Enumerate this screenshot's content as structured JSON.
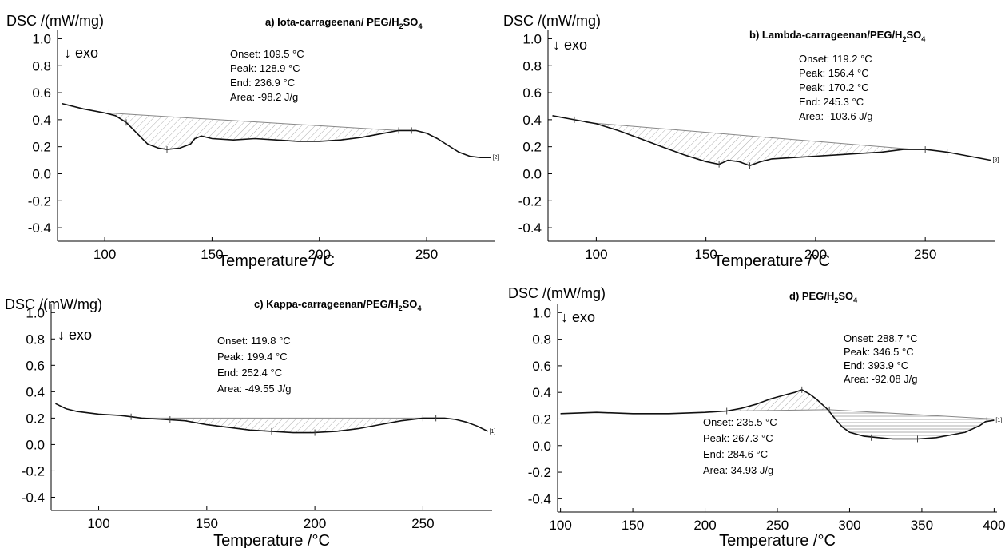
{
  "chart_data": [
    {
      "type": "line",
      "title_prefix": "a) Iota-carrageenan/ PEG/H",
      "title_sub": "2",
      "title_mid": "SO",
      "title_sub2": "4",
      "ylabel": "DSC /(mW/mg)",
      "xlabel": "Temperature /°C",
      "exo_label": "↓ exo",
      "curve_tag": "[2]",
      "xlim": [
        78,
        282
      ],
      "ylim": [
        -0.5,
        1.05
      ],
      "x_ticks": [
        100,
        150,
        200,
        250
      ],
      "y_ticks": [
        1.0,
        0.8,
        0.6,
        0.4,
        0.2,
        0.0,
        -0.2,
        -0.4
      ],
      "y_tick_labels": [
        "1.0",
        "0.8",
        "0.6",
        "0.4",
        "0.2",
        "0.0",
        "-0.2",
        "-0.4"
      ],
      "annotations": [
        "Onset: 109.5 °C",
        "Peak: 128.9 °C",
        "End: 236.9 °C",
        "Area: -98.2 J/g"
      ],
      "series": [
        {
          "x": [
            80,
            90,
            100,
            105,
            110,
            115,
            120,
            125,
            129,
            135,
            140,
            142,
            145,
            150,
            160,
            170,
            180,
            190,
            200,
            210,
            220,
            230,
            237,
            245,
            250,
            255,
            260,
            265,
            270,
            275,
            280
          ],
          "y": [
            0.52,
            0.48,
            0.45,
            0.43,
            0.38,
            0.3,
            0.22,
            0.19,
            0.18,
            0.19,
            0.22,
            0.26,
            0.28,
            0.26,
            0.25,
            0.26,
            0.25,
            0.24,
            0.24,
            0.25,
            0.27,
            0.3,
            0.32,
            0.32,
            0.3,
            0.26,
            0.21,
            0.16,
            0.13,
            0.12,
            0.12
          ]
        }
      ],
      "baseline": {
        "x": [
          101,
          237
        ],
        "y": [
          0.45,
          0.32
        ]
      },
      "markers": [
        {
          "x": 102,
          "y": 0.45
        },
        {
          "x": 110,
          "y": 0.38
        },
        {
          "x": 129,
          "y": 0.18
        },
        {
          "x": 237,
          "y": 0.32
        },
        {
          "x": 243,
          "y": 0.32
        }
      ]
    },
    {
      "type": "line",
      "title_prefix": "b) Lambda-carrageenan/PEG/H",
      "title_sub": "2",
      "title_mid": "SO",
      "title_sub2": "4",
      "ylabel": "DSC /(mW/mg)",
      "xlabel": "Temperature /°C",
      "exo_label": "↓ exo",
      "curve_tag": "[8]",
      "xlim": [
        78,
        282
      ],
      "ylim": [
        -0.5,
        1.05
      ],
      "x_ticks": [
        100,
        150,
        200,
        250
      ],
      "y_ticks": [
        1.0,
        0.8,
        0.6,
        0.4,
        0.2,
        0.0,
        -0.2,
        -0.4
      ],
      "y_tick_labels": [
        "1.0",
        "0.8",
        "0.6",
        "0.4",
        "0.2",
        "0.0",
        "-0.2",
        "-0.4"
      ],
      "annotations": [
        "Onset: 119.2 °C",
        "Peak: 156.4 °C",
        "Peak: 170.2 °C",
        "End: 245.3 °C",
        "Area: -103.6 J/g"
      ],
      "series": [
        {
          "x": [
            80,
            90,
            100,
            110,
            120,
            130,
            140,
            150,
            156,
            160,
            165,
            170,
            175,
            180,
            190,
            200,
            210,
            220,
            230,
            240,
            245,
            250,
            255,
            260,
            270,
            280
          ],
          "y": [
            0.43,
            0.4,
            0.37,
            0.32,
            0.26,
            0.2,
            0.14,
            0.09,
            0.07,
            0.1,
            0.09,
            0.06,
            0.09,
            0.11,
            0.12,
            0.13,
            0.14,
            0.15,
            0.16,
            0.18,
            0.18,
            0.18,
            0.17,
            0.16,
            0.13,
            0.1
          ]
        }
      ],
      "baseline": {
        "x": [
          95,
          245
        ],
        "y": [
          0.38,
          0.18
        ]
      },
      "markers": [
        {
          "x": 90,
          "y": 0.4
        },
        {
          "x": 156,
          "y": 0.07
        },
        {
          "x": 170,
          "y": 0.06
        },
        {
          "x": 250,
          "y": 0.18
        },
        {
          "x": 260,
          "y": 0.16
        }
      ]
    },
    {
      "type": "line",
      "title_prefix": "c) Kappa-carrageenan/PEG/H",
      "title_sub": "2",
      "title_mid": "SO",
      "title_sub2": "4",
      "ylabel": "DSC /(mW/mg)",
      "xlabel": "Temperature /°C",
      "exo_label": "↓ exo",
      "curve_tag": "[1]",
      "xlim": [
        78,
        282
      ],
      "ylim": [
        -0.5,
        1.05
      ],
      "x_ticks": [
        100,
        150,
        200,
        250
      ],
      "y_ticks": [
        1.0,
        0.8,
        0.6,
        0.4,
        0.2,
        0.0,
        -0.2,
        -0.4
      ],
      "y_tick_labels": [
        "1.0",
        "0.8",
        "0.6",
        "0.4",
        "0.2",
        "0.0",
        "-0.2",
        "-0.4"
      ],
      "annotations": [
        "Onset: 119.8 °C",
        "Peak: 199.4 °C",
        "End: 252.4 °C",
        "Area: -49.55 J/g"
      ],
      "series": [
        {
          "x": [
            80,
            85,
            90,
            100,
            110,
            115,
            120,
            130,
            140,
            150,
            160,
            170,
            180,
            190,
            199,
            210,
            220,
            230,
            240,
            250,
            255,
            260,
            265,
            270,
            275,
            280
          ],
          "y": [
            0.31,
            0.27,
            0.25,
            0.23,
            0.22,
            0.21,
            0.2,
            0.19,
            0.18,
            0.15,
            0.13,
            0.11,
            0.1,
            0.09,
            0.09,
            0.1,
            0.12,
            0.15,
            0.18,
            0.2,
            0.2,
            0.2,
            0.19,
            0.17,
            0.14,
            0.1
          ]
        }
      ],
      "baseline": {
        "x": [
          120,
          252
        ],
        "y": [
          0.2,
          0.2
        ]
      },
      "markers": [
        {
          "x": 115,
          "y": 0.21
        },
        {
          "x": 133,
          "y": 0.19
        },
        {
          "x": 180,
          "y": 0.1
        },
        {
          "x": 200,
          "y": 0.09
        },
        {
          "x": 250,
          "y": 0.2
        },
        {
          "x": 256,
          "y": 0.2
        }
      ]
    },
    {
      "type": "line",
      "title_prefix": "d) PEG/H",
      "title_sub": "2",
      "title_mid": "SO",
      "title_sub2": "4",
      "ylabel": "DSC /(mW/mg)",
      "xlabel": "Temperature /°C",
      "exo_label": "↓ exo",
      "curve_tag": "[1]",
      "xlim": [
        98,
        402
      ],
      "ylim": [
        -0.5,
        1.05
      ],
      "x_ticks": [
        100,
        150,
        200,
        250,
        300,
        350,
        400
      ],
      "y_ticks": [
        1.0,
        0.8,
        0.6,
        0.4,
        0.2,
        0.0,
        -0.2,
        -0.4
      ],
      "y_tick_labels": [
        "1.0",
        "0.8",
        "0.6",
        "0.4",
        "0.2",
        "0.0",
        "-0.2",
        "-0.4"
      ],
      "annotations": [
        "Onset: 288.7 °C",
        "Peak: 346.5 °C",
        "End: 393.9 °C",
        "Area: -92.08 J/g"
      ],
      "annotations2": [
        "Onset: 235.5 °C",
        "Peak: 267.3 °C",
        "End: 284.6 °C",
        "Area: 34.93 J/g"
      ],
      "series": [
        {
          "x": [
            100,
            125,
            150,
            175,
            200,
            215,
            225,
            235,
            245,
            255,
            262,
            267,
            272,
            277,
            282,
            285,
            290,
            295,
            300,
            310,
            320,
            330,
            340,
            347,
            360,
            370,
            380,
            390,
            394,
            400
          ],
          "y": [
            0.24,
            0.25,
            0.24,
            0.24,
            0.25,
            0.26,
            0.28,
            0.31,
            0.35,
            0.38,
            0.4,
            0.42,
            0.39,
            0.35,
            0.3,
            0.27,
            0.2,
            0.14,
            0.1,
            0.07,
            0.06,
            0.05,
            0.05,
            0.05,
            0.06,
            0.08,
            0.1,
            0.15,
            0.18,
            0.19
          ]
        }
      ],
      "baseline": {
        "x": [
          215,
          286
        ],
        "y": [
          0.26,
          0.27
        ]
      },
      "baseline2": {
        "x": [
          286,
          400
        ],
        "y": [
          0.27,
          0.2
        ]
      },
      "markers": [
        {
          "x": 215,
          "y": 0.26
        },
        {
          "x": 267,
          "y": 0.42
        },
        {
          "x": 286,
          "y": 0.27
        },
        {
          "x": 315,
          "y": 0.06
        },
        {
          "x": 347,
          "y": 0.05
        },
        {
          "x": 395,
          "y": 0.19
        }
      ]
    }
  ]
}
